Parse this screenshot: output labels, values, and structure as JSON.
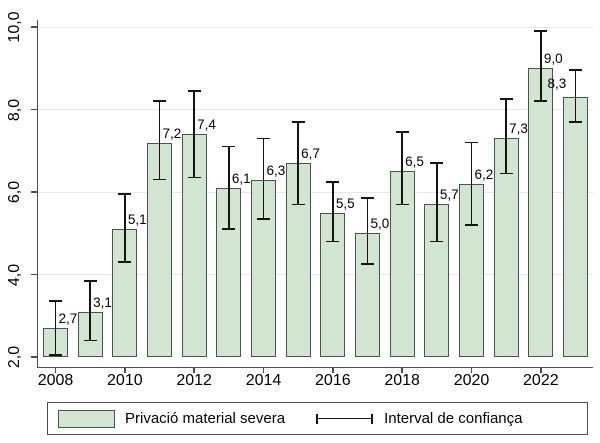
{
  "chart_data": {
    "type": "bar",
    "title": "",
    "xlabel": "",
    "ylabel": "",
    "categories": [
      "2008",
      "2009",
      "2010",
      "2011",
      "2012",
      "2013",
      "2014",
      "2015",
      "2016",
      "2017",
      "2018",
      "2019",
      "2020",
      "2021",
      "2022",
      "2023"
    ],
    "series": [
      {
        "name": "Privació material severa",
        "values": [
          2.7,
          3.1,
          5.1,
          7.2,
          7.4,
          6.1,
          6.3,
          6.7,
          5.5,
          5.0,
          6.5,
          5.7,
          6.2,
          7.3,
          9.0,
          8.3
        ],
        "labels": [
          "2,7",
          "3,1",
          "5,1",
          "7,2",
          "7,4",
          "6,1",
          "6,3",
          "6,7",
          "5,5",
          "5,0",
          "6,5",
          "5,7",
          "6,2",
          "7,3",
          "9,0",
          "8,3"
        ],
        "ci_low": [
          2.05,
          2.4,
          4.3,
          6.3,
          6.35,
          5.1,
          5.35,
          5.7,
          4.8,
          4.25,
          5.7,
          4.8,
          5.2,
          6.45,
          8.2,
          7.7
        ],
        "ci_high": [
          3.35,
          3.85,
          5.95,
          8.2,
          8.45,
          7.1,
          7.3,
          7.7,
          6.25,
          5.85,
          7.45,
          6.7,
          7.2,
          8.25,
          9.9,
          8.95
        ]
      }
    ],
    "ylim": [
      2,
      10
    ],
    "ytick_values": [
      2,
      4,
      6,
      8,
      10
    ],
    "yticks": [
      "2,0",
      "4,0",
      "6,0",
      "8,0",
      "10,0"
    ],
    "xtick_indices": [
      0,
      2,
      4,
      6,
      8,
      10,
      12,
      14
    ],
    "xtick_labels": [
      "2008",
      "2010",
      "2012",
      "2014",
      "2016",
      "2018",
      "2020",
      "2022"
    ],
    "grid": true,
    "legend": {
      "position": "bottom",
      "items": [
        {
          "type": "bar-swatch",
          "label": "Privació material severa"
        },
        {
          "type": "error-bar",
          "label": "Interval de confiança"
        }
      ]
    },
    "colors": {
      "bar_fill": "#d2e5d0",
      "bar_border": "#45564e",
      "error_bar": "#141414",
      "grid": "#e7e7e7",
      "axis": "#4d4d4d",
      "text": "#000000",
      "background": "#ffffff",
      "legend_border": "#4d4d4d"
    }
  }
}
